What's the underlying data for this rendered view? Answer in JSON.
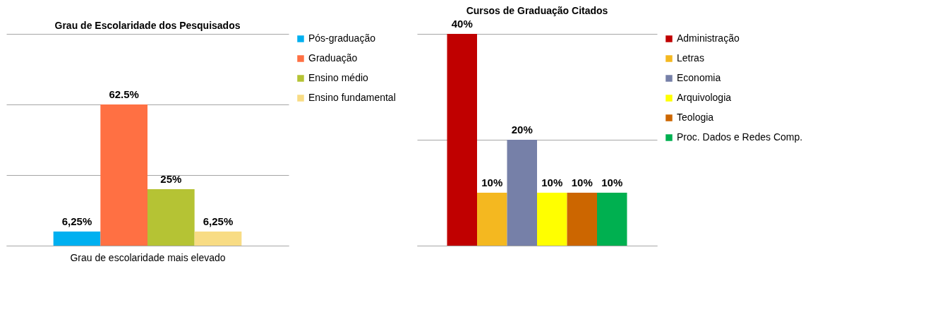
{
  "chart_data": [
    {
      "type": "bar",
      "title": "Grau de Escolaridade dos Pesquisados",
      "xlabel": "Grau de escolaridade mais elevado",
      "categories": [
        null
      ],
      "series": [
        {
          "name": "Pós-graduação",
          "color": "#00b0f0",
          "values": [
            6.25
          ],
          "value_labels": [
            "6,25%"
          ]
        },
        {
          "name": "Graduação",
          "color": "#ff7043",
          "values": [
            62.5
          ],
          "value_labels": [
            "62.5%"
          ]
        },
        {
          "name": "Ensino médio",
          "color": "#b5c334",
          "values": [
            25
          ],
          "value_labels": [
            "25%"
          ]
        },
        {
          "name": "Ensino fundamental",
          "color": "#f8dc84",
          "values": [
            6.25
          ],
          "value_labels": [
            "6,25%"
          ]
        }
      ],
      "ylim": [
        0,
        93.75
      ],
      "yticks": [
        {
          "value": 0,
          "label": null
        },
        {
          "value": 31.25,
          "label": null
        },
        {
          "value": 62.5,
          "label": null
        },
        {
          "value": 93.75,
          "label": null
        }
      ],
      "grid": "y",
      "tick_labels": false,
      "legend": "right"
    },
    {
      "type": "bar",
      "title": "Cursos de Graduação Citados",
      "categories": [
        null
      ],
      "series": [
        {
          "name": "Administração",
          "color": "#c00000",
          "values": [
            40
          ],
          "value_labels": [
            "40%"
          ]
        },
        {
          "name": "Letras",
          "color": "#f4b820",
          "values": [
            10
          ],
          "value_labels": [
            "10%"
          ]
        },
        {
          "name": "Economia",
          "color": "#7680a8",
          "values": [
            20
          ],
          "value_labels": [
            "20%"
          ]
        },
        {
          "name": "Arquivologia",
          "color": "#ffff00",
          "values": [
            10
          ],
          "value_labels": [
            "10%"
          ]
        },
        {
          "name": "Teologia",
          "color": "#cc6600",
          "values": [
            10
          ],
          "value_labels": [
            "10%"
          ]
        },
        {
          "name": "Proc. Dados e Redes Comp.",
          "color": "#00b050",
          "values": [
            10
          ],
          "value_labels": [
            "10%"
          ]
        }
      ],
      "ylim": [
        0,
        40
      ],
      "yticks": [
        {
          "value": 0,
          "label": null
        },
        {
          "value": 20,
          "label": null
        },
        {
          "value": 40,
          "label": null
        }
      ],
      "grid": "y",
      "tick_labels": false,
      "legend": "right"
    }
  ]
}
